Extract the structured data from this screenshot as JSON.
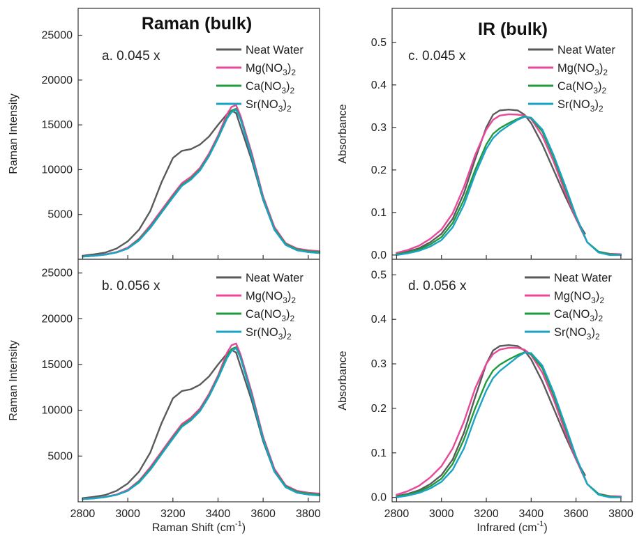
{
  "figure": {
    "left_title": "Raman (bulk)",
    "right_title": "IR (bulk)"
  },
  "chart_data": [
    {
      "type": "line",
      "panel": "a",
      "label": "a. 0.045 x",
      "title": "Raman (bulk)",
      "xlabel": "",
      "ylabel": "Raman Intensity",
      "xlim": [
        2780,
        3850
      ],
      "ylim": [
        0,
        28000
      ],
      "y_ticks": [
        5000,
        10000,
        15000,
        20000,
        25000
      ],
      "x_ticks": [
        2800,
        3000,
        3200,
        3400,
        3600,
        3800
      ],
      "show_x_ticklabels": false,
      "legend_position": "top-right",
      "series": [
        {
          "name": "Neat Water",
          "color": "#5a5a5a",
          "x": [
            2800,
            2850,
            2900,
            2950,
            3000,
            3050,
            3100,
            3150,
            3200,
            3240,
            3280,
            3320,
            3360,
            3400,
            3440,
            3460,
            3480,
            3500,
            3550,
            3600,
            3650,
            3700,
            3750,
            3800,
            3850
          ],
          "y": [
            400,
            550,
            750,
            1200,
            2000,
            3300,
            5400,
            8600,
            11300,
            12100,
            12300,
            12800,
            13700,
            15000,
            16200,
            16600,
            16300,
            14800,
            11000,
            6600,
            3300,
            1600,
            1000,
            800,
            700
          ]
        },
        {
          "name": "Mg(NO3)2",
          "color": "#e8479a",
          "x": [
            2800,
            2850,
            2900,
            2950,
            3000,
            3050,
            3100,
            3150,
            3200,
            3240,
            3280,
            3320,
            3360,
            3400,
            3440,
            3460,
            3480,
            3500,
            3550,
            3600,
            3650,
            3700,
            3750,
            3800,
            3850
          ],
          "y": [
            300,
            400,
            550,
            800,
            1300,
            2300,
            3800,
            5500,
            7200,
            8500,
            9200,
            10200,
            11800,
            13800,
            16200,
            17000,
            17200,
            16000,
            11800,
            7000,
            3600,
            1800,
            1200,
            1000,
            900
          ]
        },
        {
          "name": "Ca(NO3)2",
          "color": "#1f9a3c",
          "x": [
            2800,
            2850,
            2900,
            2950,
            3000,
            3050,
            3100,
            3150,
            3200,
            3240,
            3280,
            3320,
            3360,
            3400,
            3440,
            3460,
            3480,
            3500,
            3550,
            3600,
            3650,
            3700,
            3750,
            3800,
            3850
          ],
          "y": [
            300,
            380,
            520,
            760,
            1200,
            2200,
            3600,
            5300,
            7000,
            8300,
            9000,
            10000,
            11600,
            13600,
            15800,
            16600,
            16800,
            15700,
            11500,
            6800,
            3400,
            1700,
            1100,
            900,
            800
          ]
        },
        {
          "name": "Sr(NO3)2",
          "color": "#1aa3c4",
          "x": [
            2800,
            2850,
            2900,
            2950,
            3000,
            3050,
            3100,
            3150,
            3200,
            3240,
            3280,
            3320,
            3360,
            3400,
            3440,
            3460,
            3480,
            3500,
            3550,
            3600,
            3650,
            3700,
            3750,
            3800,
            3850
          ],
          "y": [
            300,
            380,
            520,
            760,
            1200,
            2100,
            3500,
            5200,
            6900,
            8200,
            8900,
            9900,
            11500,
            13500,
            15700,
            16400,
            16700,
            15600,
            11400,
            6700,
            3300,
            1600,
            1000,
            800,
            700
          ]
        }
      ]
    },
    {
      "type": "line",
      "panel": "b",
      "label": "b. 0.056 x",
      "title": "",
      "xlabel": "Raman Shift (cm-1)",
      "ylabel": "Raman Intensity",
      "xlim": [
        2780,
        3850
      ],
      "ylim": [
        0,
        26500
      ],
      "y_ticks": [
        5000,
        10000,
        15000,
        20000,
        25000
      ],
      "x_ticks": [
        2800,
        3000,
        3200,
        3400,
        3600,
        3800
      ],
      "show_x_ticklabels": true,
      "legend_position": "top-right",
      "series": [
        {
          "name": "Neat Water",
          "color": "#5a5a5a",
          "x": [
            2800,
            2850,
            2900,
            2950,
            3000,
            3050,
            3100,
            3150,
            3200,
            3240,
            3280,
            3320,
            3360,
            3400,
            3440,
            3460,
            3480,
            3500,
            3550,
            3600,
            3650,
            3700,
            3750,
            3800,
            3850
          ],
          "y": [
            400,
            550,
            750,
            1200,
            2000,
            3300,
            5400,
            8600,
            11300,
            12100,
            12300,
            12800,
            13700,
            15000,
            16200,
            16600,
            16300,
            14800,
            11000,
            6600,
            3300,
            1600,
            1000,
            800,
            700
          ]
        },
        {
          "name": "Mg(NO3)2",
          "color": "#e8479a",
          "x": [
            2800,
            2850,
            2900,
            2950,
            3000,
            3050,
            3100,
            3150,
            3200,
            3240,
            3280,
            3320,
            3360,
            3400,
            3440,
            3460,
            3480,
            3500,
            3550,
            3600,
            3650,
            3700,
            3750,
            3800,
            3850
          ],
          "y": [
            300,
            400,
            550,
            800,
            1300,
            2300,
            3800,
            5500,
            7200,
            8500,
            9200,
            10200,
            11800,
            13800,
            16300,
            17100,
            17300,
            16100,
            11900,
            7100,
            3600,
            1800,
            1200,
            1000,
            900
          ]
        },
        {
          "name": "Ca(NO3)2",
          "color": "#1f9a3c",
          "x": [
            2800,
            2850,
            2900,
            2950,
            3000,
            3050,
            3100,
            3150,
            3200,
            3240,
            3280,
            3320,
            3360,
            3400,
            3440,
            3460,
            3480,
            3500,
            3550,
            3600,
            3650,
            3700,
            3750,
            3800,
            3850
          ],
          "y": [
            300,
            380,
            520,
            760,
            1200,
            2200,
            3600,
            5300,
            7000,
            8300,
            9000,
            10000,
            11600,
            13600,
            15900,
            16700,
            16900,
            15800,
            11600,
            6900,
            3400,
            1700,
            1100,
            900,
            800
          ]
        },
        {
          "name": "Sr(NO3)2",
          "color": "#1aa3c4",
          "x": [
            2800,
            2850,
            2900,
            2950,
            3000,
            3050,
            3100,
            3150,
            3200,
            3240,
            3280,
            3320,
            3360,
            3400,
            3440,
            3460,
            3480,
            3500,
            3550,
            3600,
            3650,
            3700,
            3750,
            3800,
            3850
          ],
          "y": [
            300,
            380,
            520,
            760,
            1200,
            2100,
            3500,
            5200,
            6900,
            8200,
            8900,
            9900,
            11500,
            13500,
            15700,
            16500,
            16800,
            15700,
            11500,
            6800,
            3300,
            1600,
            1000,
            800,
            700
          ]
        }
      ]
    },
    {
      "type": "line",
      "panel": "c",
      "label": "c. 0.045 x",
      "title": "IR (bulk)",
      "xlabel": "",
      "ylabel": "Absorbance",
      "xlim": [
        2780,
        3850
      ],
      "ylim": [
        -0.01,
        0.58
      ],
      "y_ticks": [
        0.0,
        0.1,
        0.2,
        0.3,
        0.4,
        0.5
      ],
      "x_ticks": [
        2800,
        3000,
        3200,
        3400,
        3600,
        3800
      ],
      "show_x_ticklabels": false,
      "legend_position": "top-right",
      "series": [
        {
          "name": "Neat Water",
          "color": "#5a5a5a",
          "x": [
            2800,
            2850,
            2900,
            2950,
            3000,
            3050,
            3100,
            3150,
            3200,
            3230,
            3260,
            3300,
            3340,
            3370,
            3400,
            3450,
            3500,
            3550,
            3600,
            3640
          ],
          "y": [
            0.003,
            0.008,
            0.016,
            0.03,
            0.05,
            0.085,
            0.145,
            0.225,
            0.3,
            0.33,
            0.34,
            0.342,
            0.34,
            0.33,
            0.31,
            0.26,
            0.2,
            0.14,
            0.085,
            0.05
          ]
        },
        {
          "name": "Mg(NO3)2",
          "color": "#e8479a",
          "x": [
            2800,
            2850,
            2900,
            2950,
            3000,
            3050,
            3100,
            3150,
            3200,
            3230,
            3260,
            3300,
            3340,
            3370,
            3400,
            3450,
            3500,
            3550,
            3600,
            3650,
            3700,
            3750,
            3800
          ],
          "y": [
            0.005,
            0.012,
            0.022,
            0.038,
            0.06,
            0.098,
            0.16,
            0.235,
            0.295,
            0.318,
            0.328,
            0.331,
            0.33,
            0.328,
            0.32,
            0.28,
            0.22,
            0.15,
            0.085,
            0.03,
            0.008,
            0.003,
            0.002
          ]
        },
        {
          "name": "Ca(NO3)2",
          "color": "#1f9a3c",
          "x": [
            2800,
            2850,
            2900,
            2950,
            3000,
            3050,
            3100,
            3150,
            3200,
            3230,
            3260,
            3300,
            3340,
            3370,
            3400,
            3450,
            3500,
            3550,
            3600,
            3650,
            3700,
            3750,
            3800
          ],
          "y": [
            0.002,
            0.006,
            0.013,
            0.025,
            0.042,
            0.075,
            0.13,
            0.2,
            0.26,
            0.285,
            0.298,
            0.31,
            0.32,
            0.326,
            0.322,
            0.29,
            0.23,
            0.16,
            0.09,
            0.03,
            0.008,
            0.002,
            0.0
          ]
        },
        {
          "name": "Sr(NO3)2",
          "color": "#1aa3c4",
          "x": [
            2800,
            2850,
            2900,
            2950,
            3000,
            3050,
            3100,
            3150,
            3200,
            3230,
            3260,
            3300,
            3340,
            3370,
            3400,
            3450,
            3500,
            3550,
            3600,
            3650,
            3700,
            3750,
            3800
          ],
          "y": [
            0.0,
            0.004,
            0.01,
            0.02,
            0.035,
            0.065,
            0.118,
            0.19,
            0.25,
            0.275,
            0.29,
            0.305,
            0.318,
            0.325,
            0.323,
            0.295,
            0.235,
            0.165,
            0.092,
            0.03,
            0.006,
            0.0,
            0.0
          ]
        }
      ]
    },
    {
      "type": "line",
      "panel": "d",
      "label": "d. 0.056 x",
      "title": "",
      "xlabel": "Infrared (cm-1)",
      "ylabel": "Absorbance",
      "xlim": [
        2780,
        3850
      ],
      "ylim": [
        -0.01,
        0.535
      ],
      "y_ticks": [
        0.0,
        0.1,
        0.2,
        0.3,
        0.4,
        0.5
      ],
      "x_ticks": [
        2800,
        3000,
        3200,
        3400,
        3600,
        3800
      ],
      "show_x_ticklabels": true,
      "legend_position": "top-right",
      "series": [
        {
          "name": "Neat Water",
          "color": "#5a5a5a",
          "x": [
            2800,
            2850,
            2900,
            2950,
            3000,
            3050,
            3100,
            3150,
            3200,
            3230,
            3260,
            3300,
            3340,
            3370,
            3400,
            3450,
            3500,
            3550,
            3600,
            3640
          ],
          "y": [
            0.003,
            0.008,
            0.016,
            0.03,
            0.05,
            0.085,
            0.145,
            0.225,
            0.3,
            0.33,
            0.34,
            0.342,
            0.34,
            0.33,
            0.31,
            0.26,
            0.2,
            0.14,
            0.085,
            0.05
          ]
        },
        {
          "name": "Mg(NO3)2",
          "color": "#e8479a",
          "x": [
            2800,
            2850,
            2900,
            2950,
            3000,
            3050,
            3100,
            3150,
            3200,
            3230,
            3260,
            3300,
            3340,
            3370,
            3400,
            3450,
            3500,
            3550,
            3600,
            3650,
            3700,
            3750,
            3800
          ],
          "y": [
            0.006,
            0.014,
            0.026,
            0.045,
            0.07,
            0.11,
            0.17,
            0.245,
            0.3,
            0.322,
            0.332,
            0.336,
            0.336,
            0.332,
            0.32,
            0.28,
            0.22,
            0.15,
            0.085,
            0.03,
            0.008,
            0.003,
            0.002
          ]
        },
        {
          "name": "Ca(NO3)2",
          "color": "#1f9a3c",
          "x": [
            2800,
            2850,
            2900,
            2950,
            3000,
            3050,
            3100,
            3150,
            3200,
            3230,
            3260,
            3300,
            3340,
            3370,
            3400,
            3450,
            3500,
            3550,
            3600,
            3650,
            3700,
            3750,
            3800
          ],
          "y": [
            0.002,
            0.006,
            0.013,
            0.025,
            0.042,
            0.075,
            0.13,
            0.2,
            0.26,
            0.285,
            0.298,
            0.31,
            0.32,
            0.326,
            0.322,
            0.29,
            0.23,
            0.16,
            0.09,
            0.03,
            0.008,
            0.002,
            0.0
          ]
        },
        {
          "name": "Sr(NO3)2",
          "color": "#1aa3c4",
          "x": [
            2800,
            2850,
            2900,
            2950,
            3000,
            3050,
            3100,
            3150,
            3200,
            3230,
            3260,
            3300,
            3340,
            3370,
            3400,
            3450,
            3500,
            3550,
            3600,
            3650,
            3700,
            3750,
            3800
          ],
          "y": [
            0.0,
            0.004,
            0.01,
            0.02,
            0.035,
            0.062,
            0.11,
            0.18,
            0.24,
            0.268,
            0.284,
            0.3,
            0.316,
            0.325,
            0.324,
            0.296,
            0.236,
            0.165,
            0.092,
            0.03,
            0.006,
            0.0,
            0.0
          ]
        }
      ]
    }
  ]
}
